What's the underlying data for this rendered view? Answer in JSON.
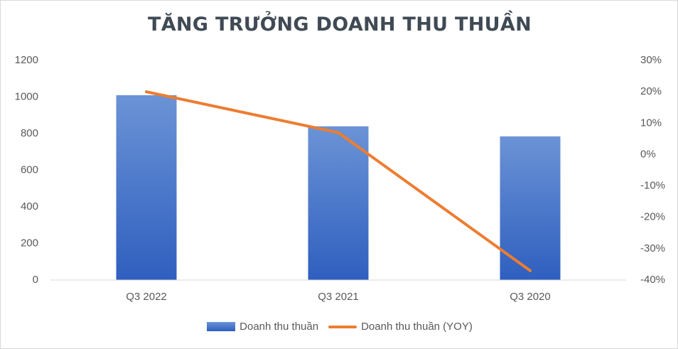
{
  "chart_data": {
    "type": "bar",
    "title": "TĂNG TRƯỞNG DOANH THU THUẦN",
    "categories": [
      "Q3 2022",
      "Q3 2021",
      "Q3 2020"
    ],
    "series": [
      {
        "name": "Doanh thu thuần",
        "type": "bar",
        "axis": "left",
        "values": [
          1010,
          840,
          785
        ],
        "color": "#4472c4"
      },
      {
        "name": "Doanh thu thuần (YOY)",
        "type": "line",
        "axis": "right",
        "values": [
          0.2,
          0.07,
          -0.37
        ],
        "color": "#ed7d31"
      }
    ],
    "left_axis": {
      "ylim": [
        0,
        1200
      ],
      "ticks": [
        "0",
        "200",
        "400",
        "600",
        "800",
        "1000",
        "1200"
      ]
    },
    "right_axis": {
      "ylim": [
        -0.4,
        0.3
      ],
      "ticks": [
        "-40%",
        "-30%",
        "-20%",
        "-10%",
        "0%",
        "10%",
        "20%",
        "30%"
      ]
    },
    "grid": false,
    "legend_position": "bottom"
  }
}
